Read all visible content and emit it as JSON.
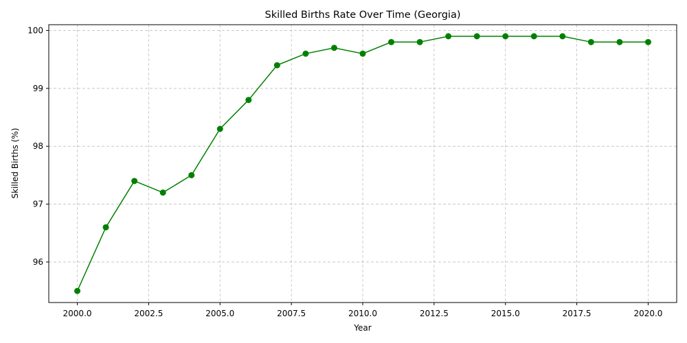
{
  "chart_data": {
    "type": "line",
    "title": "Skilled Births Rate Over Time (Georgia)",
    "xlabel": "Year",
    "ylabel": "Skilled Births (%)",
    "xlim": [
      1999.0,
      2021.0
    ],
    "ylim": [
      95.3,
      100.1
    ],
    "xticks": [
      2000.0,
      2002.5,
      2005.0,
      2007.5,
      2010.0,
      2012.5,
      2015.0,
      2017.5,
      2020.0
    ],
    "xtick_labels": [
      "2000.0",
      "2002.5",
      "2005.0",
      "2007.5",
      "2010.0",
      "2012.5",
      "2015.0",
      "2017.5",
      "2020.0"
    ],
    "yticks": [
      96,
      97,
      98,
      99,
      100
    ],
    "ytick_labels": [
      "96",
      "97",
      "98",
      "99",
      "100"
    ],
    "grid": true,
    "series": [
      {
        "color": "#008000",
        "x": [
          2000,
          2001,
          2002,
          2003,
          2004,
          2005,
          2006,
          2007,
          2008,
          2009,
          2010,
          2011,
          2012,
          2013,
          2014,
          2015,
          2016,
          2017,
          2018,
          2019,
          2020
        ],
        "y": [
          95.5,
          96.6,
          97.4,
          97.2,
          97.5,
          98.3,
          98.8,
          99.4,
          99.6,
          99.7,
          99.6,
          99.8,
          99.8,
          99.9,
          99.9,
          99.9,
          99.9,
          99.9,
          99.8,
          99.8,
          99.8
        ]
      }
    ]
  }
}
